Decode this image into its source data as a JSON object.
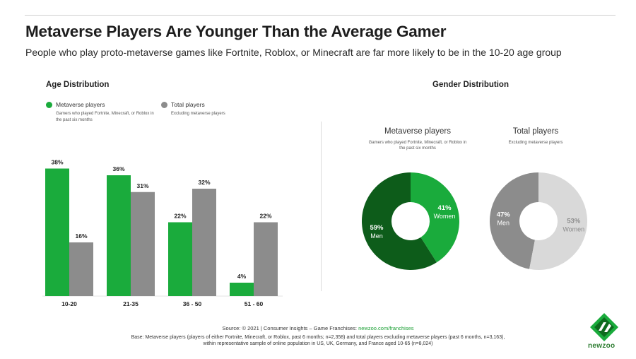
{
  "header": {
    "title": "Metaverse Players Are Younger Than the Average Gamer",
    "subtitle": "People who play proto-metaverse games like Fortnite, Roblox, or Minecraft are far more likely to be in the 10-20 age group"
  },
  "colors": {
    "metaverse": "#1aab3c",
    "total": "#8c8c8c",
    "men_metaverse": "#0d5c1a",
    "women_metaverse": "#1aab3c",
    "men_total": "#8c8c8c",
    "women_total": "#d9d9d9",
    "link": "#1a9f33"
  },
  "age": {
    "heading": "Age Distribution",
    "legend": [
      {
        "label": "Metaverse players",
        "note": "Gamers who played  Fortnite, Minecraft, or Roblox in the past six months",
        "color_key": "metaverse"
      },
      {
        "label": "Total players",
        "note": "Excluding metaverse players",
        "color_key": "total"
      }
    ]
  },
  "gender": {
    "heading": "Gender Distribution",
    "donuts": [
      {
        "title": "Metaverse players",
        "note": "Gamers who played  Fortnite, Minecraft, or Roblox in the past six months"
      },
      {
        "title": "Total players",
        "note": "Excluding metaverse players"
      }
    ]
  },
  "chart_data": [
    {
      "type": "bar",
      "title": "Age Distribution",
      "categories": [
        "10-20",
        "21-35",
        "36 - 50",
        "51 - 60"
      ],
      "series": [
        {
          "name": "Metaverse players",
          "values": [
            38,
            36,
            22,
            4
          ]
        },
        {
          "name": "Total players",
          "values": [
            16,
            31,
            32,
            22
          ]
        }
      ],
      "value_labels": {
        "Metaverse players": [
          "38%",
          "36%",
          "22%",
          "4%"
        ],
        "Total players": [
          "16%",
          "31%",
          "32%",
          "22%"
        ]
      },
      "ylim": [
        0,
        40
      ],
      "grid": false,
      "legend_position": "top-left"
    },
    {
      "type": "pie",
      "title": "Metaverse players",
      "donut": true,
      "slices": [
        {
          "label": "Men",
          "value": 59,
          "value_label": "59%"
        },
        {
          "label": "Women",
          "value": 41,
          "value_label": "41%"
        }
      ]
    },
    {
      "type": "pie",
      "title": "Total players",
      "donut": true,
      "slices": [
        {
          "label": "Men",
          "value": 47,
          "value_label": "47%"
        },
        {
          "label": "Women",
          "value": 53,
          "value_label": "53%"
        }
      ]
    }
  ],
  "footer": {
    "source_prefix": "Source: © 2021 | Consumer Insights – Game Franchises: ",
    "source_link": "newzoo.com/franchises",
    "base_note": "Base: Metaverse players (players of either Fortnite, Minecraft, or Roblox, past 6 months; n=2,358) and total players excluding metaverse players (past 6 months, n=3,163), within representative sample of online population in US, UK, Germany, and France aged 10-65 (n=8,024)"
  },
  "logo": {
    "text": "newzoo"
  }
}
